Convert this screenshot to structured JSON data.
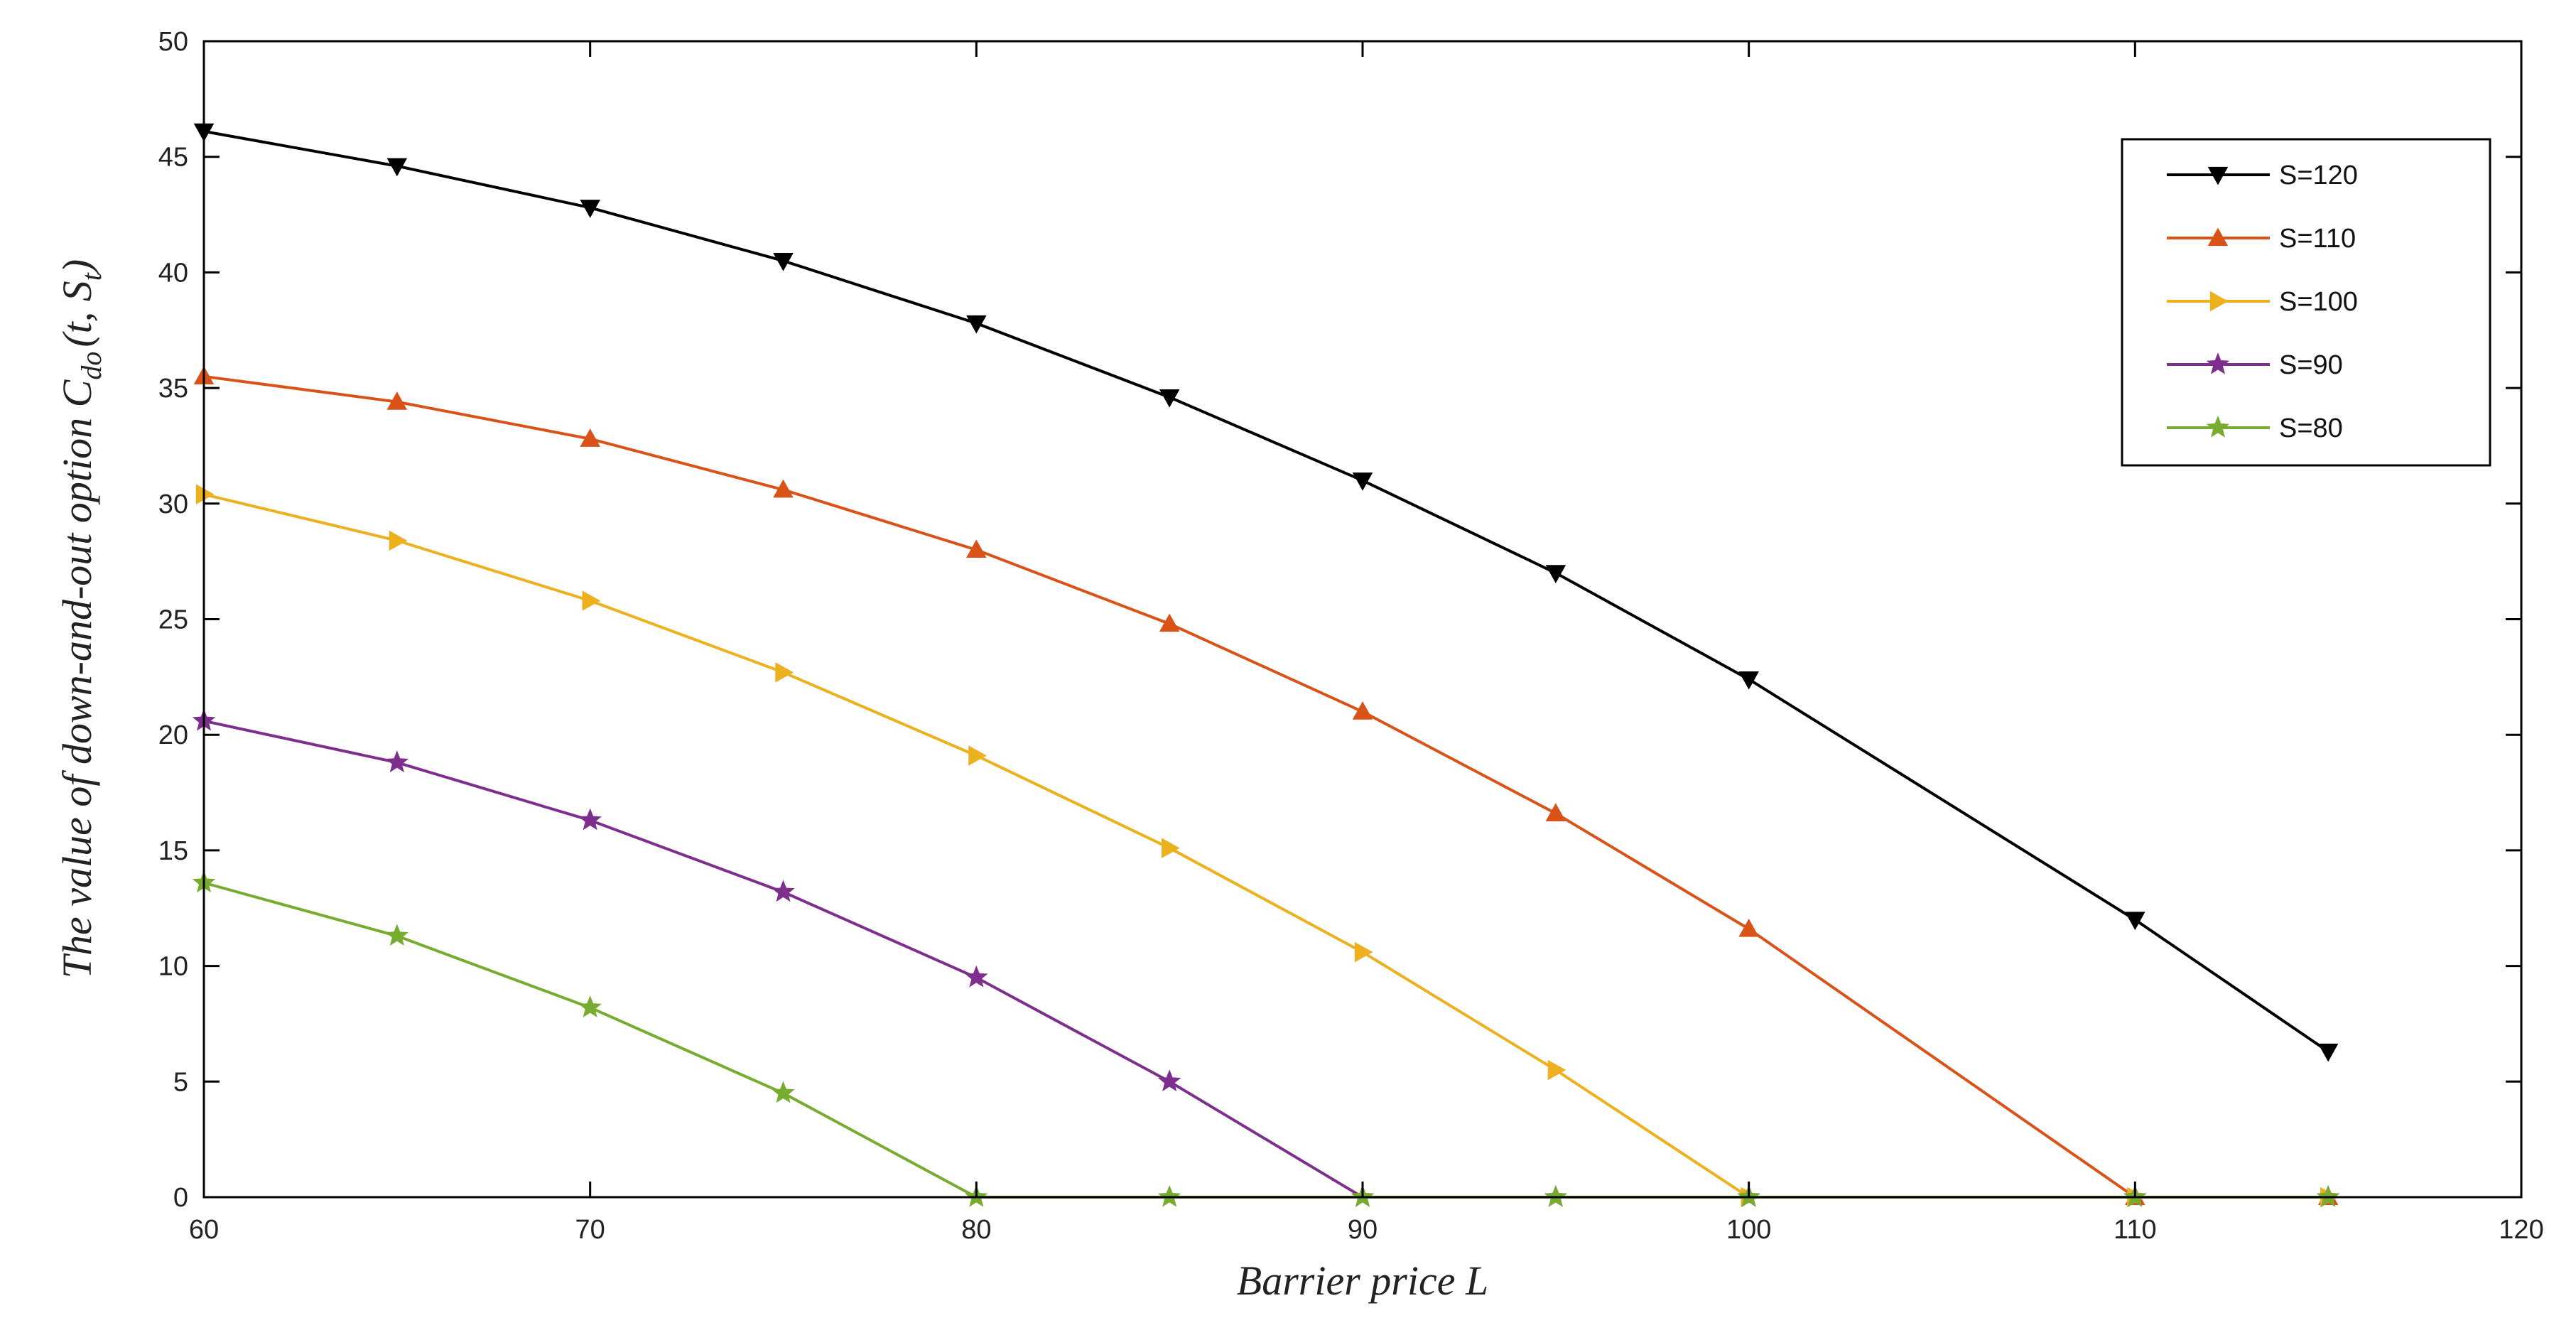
{
  "chart_data": {
    "type": "line",
    "title": "",
    "xlabel": "Barrier price L",
    "ylabel_text": "The value of down-and-out option ",
    "ylabel_math": "C",
    "ylabel_sub": "do",
    "ylabel_args": "(t, S",
    "ylabel_args_sub": "t",
    "ylabel_close": ")",
    "xlim": [
      60,
      120
    ],
    "ylim": [
      0,
      50
    ],
    "xticks": [
      60,
      70,
      80,
      90,
      100,
      110,
      120
    ],
    "yticks": [
      0,
      5,
      10,
      15,
      20,
      25,
      30,
      35,
      40,
      45,
      50
    ],
    "x": [
      60,
      65,
      70,
      75,
      80,
      85,
      90,
      95,
      100,
      110,
      115
    ],
    "grid": false,
    "legend_position": "top-right",
    "series": [
      {
        "name": "S=120",
        "color": "#000000",
        "marker": "triangle-down",
        "values": [
          46.1,
          44.6,
          42.8,
          40.5,
          37.8,
          34.6,
          31.0,
          27.0,
          22.4,
          12.0,
          6.3
        ]
      },
      {
        "name": "S=110",
        "color": "#D95319",
        "marker": "triangle-up",
        "values": [
          35.5,
          34.4,
          32.8,
          30.6,
          28.0,
          24.8,
          21.0,
          16.6,
          11.6,
          0,
          0
        ]
      },
      {
        "name": "S=100",
        "color": "#EDB120",
        "marker": "triangle-right",
        "values": [
          30.4,
          28.4,
          25.8,
          22.7,
          19.1,
          15.1,
          10.6,
          5.5,
          0,
          0,
          0
        ]
      },
      {
        "name": "S=90",
        "color": "#7E2F8E",
        "marker": "star",
        "values": [
          20.6,
          18.8,
          16.3,
          13.2,
          9.5,
          5.0,
          0,
          0,
          0,
          0,
          0
        ]
      },
      {
        "name": "S=80",
        "color": "#77AC30",
        "marker": "star",
        "values": [
          13.6,
          11.3,
          8.2,
          4.5,
          0,
          0,
          0,
          0,
          0,
          0,
          0
        ]
      }
    ]
  }
}
